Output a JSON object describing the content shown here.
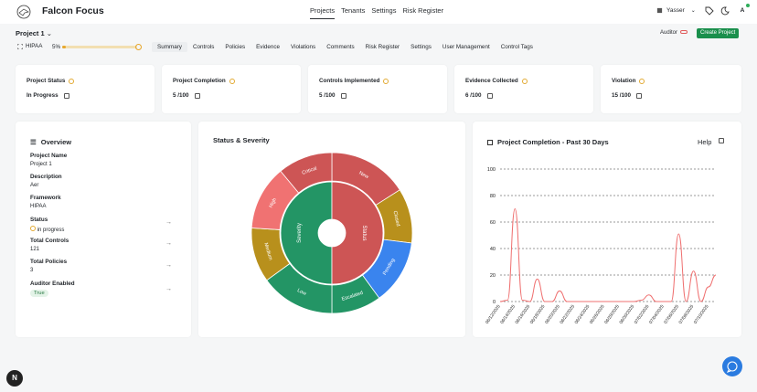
{
  "app": {
    "name": "Falcon Focus"
  },
  "nav": [
    "Projects",
    "Tenants",
    "Settings",
    "Risk Register"
  ],
  "user": {
    "name": "Yasser",
    "initial": "A"
  },
  "project": {
    "title": "Project 1",
    "framework": "HIPAA",
    "progress_label": "5%",
    "progress": 0.05
  },
  "header_actions": {
    "auditor_label": "Auditor",
    "create_label": "Create Project"
  },
  "tabs": [
    "Summary",
    "Controls",
    "Policies",
    "Evidence",
    "Violations",
    "Comments",
    "Risk Register",
    "Settings",
    "User Management",
    "Control Tags"
  ],
  "stats": [
    {
      "title": "Project Status",
      "value": "In Progress"
    },
    {
      "title": "Project Completion",
      "value": "5 /100"
    },
    {
      "title": "Controls Implemented",
      "value": "5 /100"
    },
    {
      "title": "Evidence Collected",
      "value": "6 /100"
    },
    {
      "title": "Violation",
      "value": "15 /100"
    }
  ],
  "overview": {
    "title": "Overview",
    "items": [
      {
        "label": "Project Name",
        "value": "Project 1"
      },
      {
        "label": "Description",
        "value": "Aer"
      },
      {
        "label": "Framework",
        "value": "HIPAA"
      },
      {
        "label": "Status",
        "value": "in progress"
      },
      {
        "label": "Total Controls",
        "value": "121"
      },
      {
        "label": "Total Policies",
        "value": "3"
      },
      {
        "label": "Auditor Enabled",
        "value": "True"
      }
    ]
  },
  "sunburst": {
    "title": "Status & Severity",
    "inner": [
      {
        "label": "Severity",
        "value": 50,
        "color": "#239565"
      },
      {
        "label": "Status",
        "value": 50,
        "color": "#cd5555"
      }
    ],
    "outer": [
      {
        "label": "New",
        "value": 16,
        "color": "#cd5555"
      },
      {
        "label": "Closed",
        "value": 11,
        "color": "#b8901c"
      },
      {
        "label": "Pending",
        "value": 13,
        "color": "#3a84ee"
      },
      {
        "label": "Escalated",
        "value": 10,
        "color": "#239565"
      },
      {
        "label": "Low",
        "value": 15,
        "color": "#239565"
      },
      {
        "label": "Medium",
        "value": 11,
        "color": "#b8901c"
      },
      {
        "label": "High",
        "value": 13,
        "color": "#f07272"
      },
      {
        "label": "Critical",
        "value": 11,
        "color": "#cd5555"
      }
    ]
  },
  "chart_data": {
    "type": "line",
    "title": "Project Completion - Past 30 Days",
    "help_label": "Help",
    "ylim": [
      0,
      100
    ],
    "yticks": [
      0,
      20,
      40,
      60,
      80,
      100
    ],
    "x": [
      "06/12/2025",
      "06/13/2025",
      "06/14/2025",
      "06/15/2025",
      "06/16/2025",
      "06/17/2025",
      "06/18/2025",
      "06/19/2025",
      "06/20/2025",
      "06/21/2025",
      "06/22/2025",
      "06/23/2025",
      "06/24/2025",
      "06/25/2025",
      "06/26/2025",
      "06/27/2025",
      "06/28/2025",
      "06/29/2025",
      "06/30/2025",
      "07/01/2025",
      "07/02/2025",
      "07/03/2025",
      "07/04/2025",
      "07/05/2025",
      "07/06/2025",
      "07/07/2025",
      "07/08/2025",
      "07/09/2025",
      "07/10/2025",
      "07/11/2025"
    ],
    "series": [
      {
        "values": [
          0,
          1,
          70,
          1,
          0,
          17,
          0,
          0,
          8,
          0,
          0,
          0,
          0,
          0,
          0,
          0,
          0,
          0,
          0,
          1,
          5,
          0,
          0,
          0,
          51,
          0,
          23,
          0,
          11,
          20
        ],
        "color": "#ef7070"
      }
    ],
    "grid": true
  }
}
